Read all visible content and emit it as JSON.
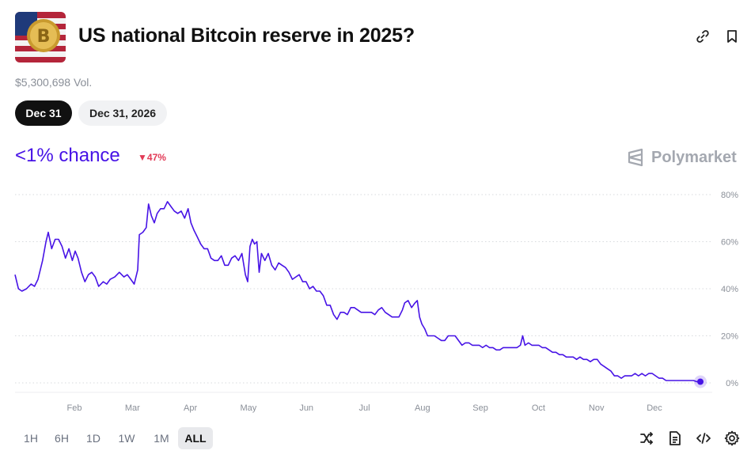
{
  "market": {
    "title": "US national Bitcoin reserve in 2025?",
    "volume": "$5,300,698 Vol.",
    "thumbnail_icon": "bitcoin-flag-image"
  },
  "date_options": [
    {
      "label": "Dec 31",
      "active": true
    },
    {
      "label": "Dec 31, 2026",
      "active": false
    }
  ],
  "outcome": {
    "chance": "<1% chance",
    "change": "47%",
    "change_direction": "down",
    "accent_color": "#4713e6",
    "negative_color": "#e23a56"
  },
  "brand": {
    "name": "Polymarket"
  },
  "header_actions": [
    {
      "icon": "link-icon"
    },
    {
      "icon": "bookmark-icon"
    }
  ],
  "range_buttons": [
    {
      "label": "1H",
      "active": false
    },
    {
      "label": "6H",
      "active": false
    },
    {
      "label": "1D",
      "active": false
    },
    {
      "label": "1W",
      "active": false
    },
    {
      "label": "1M",
      "active": false
    },
    {
      "label": "ALL",
      "active": true
    }
  ],
  "tool_icons": [
    "shuffle-icon",
    "document-icon",
    "code-icon",
    "gear-icon"
  ],
  "chart_data": {
    "type": "line",
    "series": [
      {
        "color": "#4713e6",
        "points": [
          [
            0.0,
            46
          ],
          [
            0.6,
            40
          ],
          [
            1.2,
            39
          ],
          [
            2.0,
            40
          ],
          [
            2.8,
            42
          ],
          [
            3.4,
            41
          ],
          [
            4.0,
            44
          ],
          [
            4.8,
            52
          ],
          [
            5.4,
            60
          ],
          [
            5.8,
            64
          ],
          [
            6.4,
            57
          ],
          [
            7.0,
            61
          ],
          [
            7.6,
            61
          ],
          [
            8.2,
            58
          ],
          [
            8.8,
            53
          ],
          [
            9.4,
            57
          ],
          [
            10.0,
            52
          ],
          [
            10.5,
            56
          ],
          [
            11.0,
            53
          ],
          [
            11.6,
            47
          ],
          [
            12.2,
            43
          ],
          [
            12.8,
            46
          ],
          [
            13.4,
            47
          ],
          [
            14.0,
            45
          ],
          [
            14.6,
            41
          ],
          [
            15.4,
            43
          ],
          [
            16.0,
            42
          ],
          [
            16.6,
            44
          ],
          [
            17.4,
            45
          ],
          [
            18.2,
            47
          ],
          [
            19.0,
            45
          ],
          [
            19.6,
            46
          ],
          [
            20.2,
            44
          ],
          [
            20.8,
            42
          ],
          [
            21.4,
            48
          ],
          [
            21.7,
            63
          ],
          [
            22.3,
            64
          ],
          [
            22.9,
            66
          ],
          [
            23.3,
            76
          ],
          [
            23.8,
            71
          ],
          [
            24.3,
            68
          ],
          [
            24.8,
            72
          ],
          [
            25.4,
            74
          ],
          [
            26.0,
            74
          ],
          [
            26.6,
            77
          ],
          [
            27.2,
            75
          ],
          [
            27.8,
            73
          ],
          [
            28.4,
            72
          ],
          [
            29.0,
            73
          ],
          [
            29.6,
            70
          ],
          [
            30.2,
            74
          ],
          [
            30.7,
            68
          ],
          [
            31.2,
            65
          ],
          [
            31.8,
            62
          ],
          [
            32.4,
            59
          ],
          [
            33.0,
            57
          ],
          [
            33.6,
            57
          ],
          [
            34.2,
            53
          ],
          [
            34.8,
            52
          ],
          [
            35.4,
            52
          ],
          [
            36.0,
            54
          ],
          [
            36.6,
            50
          ],
          [
            37.2,
            50
          ],
          [
            37.8,
            53
          ],
          [
            38.4,
            54
          ],
          [
            39.0,
            52
          ],
          [
            39.6,
            55
          ],
          [
            40.2,
            46
          ],
          [
            40.6,
            43
          ],
          [
            41.0,
            58
          ],
          [
            41.4,
            61
          ],
          [
            41.8,
            59
          ],
          [
            42.2,
            60
          ],
          [
            42.6,
            47
          ],
          [
            43.0,
            55
          ],
          [
            43.6,
            52
          ],
          [
            44.2,
            55
          ],
          [
            44.8,
            50
          ],
          [
            45.4,
            48
          ],
          [
            46.0,
            51
          ],
          [
            46.6,
            50
          ],
          [
            47.2,
            49
          ],
          [
            47.8,
            47
          ],
          [
            48.4,
            44
          ],
          [
            49.0,
            45
          ],
          [
            49.6,
            46
          ],
          [
            50.2,
            43
          ],
          [
            50.8,
            43
          ],
          [
            51.4,
            40
          ],
          [
            52.0,
            41
          ],
          [
            52.6,
            39
          ],
          [
            53.2,
            39
          ],
          [
            53.8,
            37
          ],
          [
            54.4,
            33
          ],
          [
            55.0,
            33
          ],
          [
            55.6,
            29
          ],
          [
            56.2,
            27
          ],
          [
            56.8,
            30
          ],
          [
            57.4,
            30
          ],
          [
            58.0,
            29
          ],
          [
            58.6,
            32
          ],
          [
            59.2,
            32
          ],
          [
            59.8,
            31
          ],
          [
            60.4,
            30
          ],
          [
            61.0,
            30
          ],
          [
            61.6,
            30
          ],
          [
            62.2,
            30
          ],
          [
            62.8,
            29
          ],
          [
            63.4,
            31
          ],
          [
            64.0,
            32
          ],
          [
            64.6,
            30
          ],
          [
            65.2,
            29
          ],
          [
            65.8,
            28
          ],
          [
            66.4,
            28
          ],
          [
            67.0,
            28
          ],
          [
            67.6,
            31
          ],
          [
            68.0,
            34
          ],
          [
            68.6,
            35
          ],
          [
            69.2,
            32
          ],
          [
            69.8,
            34
          ],
          [
            70.2,
            35
          ],
          [
            70.6,
            28
          ],
          [
            71.0,
            25
          ],
          [
            71.5,
            23
          ],
          [
            72.0,
            20
          ],
          [
            72.6,
            20
          ],
          [
            73.2,
            20
          ],
          [
            73.8,
            19
          ],
          [
            74.4,
            18
          ],
          [
            75.0,
            18
          ],
          [
            75.6,
            20
          ],
          [
            76.2,
            20
          ],
          [
            76.8,
            20
          ],
          [
            77.4,
            18
          ],
          [
            78.0,
            16
          ],
          [
            78.6,
            17
          ],
          [
            79.2,
            17
          ],
          [
            79.8,
            16
          ],
          [
            80.4,
            16
          ],
          [
            81.0,
            16
          ],
          [
            81.6,
            15
          ],
          [
            82.2,
            16
          ],
          [
            82.8,
            15
          ],
          [
            83.4,
            15
          ],
          [
            84.0,
            14
          ],
          [
            84.6,
            14
          ],
          [
            85.2,
            15
          ],
          [
            85.8,
            15
          ],
          [
            86.4,
            15
          ],
          [
            87.0,
            15
          ],
          [
            87.6,
            15
          ],
          [
            88.2,
            16
          ],
          [
            88.6,
            20
          ],
          [
            89.0,
            16
          ],
          [
            89.6,
            17
          ],
          [
            90.2,
            16
          ],
          [
            90.8,
            16
          ],
          [
            91.4,
            16
          ],
          [
            92.0,
            15
          ],
          [
            92.6,
            15
          ],
          [
            93.2,
            14
          ],
          [
            93.8,
            13
          ],
          [
            94.4,
            13
          ],
          [
            95.0,
            12
          ],
          [
            95.6,
            12
          ],
          [
            96.2,
            11
          ],
          [
            96.8,
            11
          ],
          [
            97.4,
            11
          ],
          [
            98.0,
            10
          ],
          [
            98.6,
            11
          ],
          [
            99.2,
            10
          ],
          [
            99.8,
            10
          ],
          [
            100.4,
            9
          ],
          [
            101.0,
            10
          ],
          [
            101.6,
            10
          ],
          [
            102.2,
            8
          ],
          [
            102.8,
            7
          ],
          [
            103.4,
            6
          ],
          [
            104.0,
            5
          ],
          [
            104.6,
            3
          ],
          [
            105.2,
            3
          ],
          [
            105.8,
            2
          ],
          [
            106.4,
            3
          ],
          [
            107.0,
            3
          ],
          [
            107.6,
            3
          ],
          [
            108.2,
            4
          ],
          [
            108.8,
            3
          ],
          [
            109.4,
            4
          ],
          [
            110.0,
            3
          ],
          [
            110.6,
            4
          ],
          [
            111.2,
            4
          ],
          [
            111.8,
            3
          ],
          [
            112.4,
            2
          ],
          [
            113.0,
            2
          ],
          [
            113.6,
            1
          ],
          [
            114.2,
            1
          ],
          [
            114.8,
            1
          ],
          [
            115.4,
            1
          ],
          [
            116.0,
            1
          ],
          [
            116.6,
            1
          ],
          [
            117.2,
            1
          ],
          [
            117.8,
            1
          ],
          [
            118.4,
            1
          ],
          [
            119.0,
            0.5
          ],
          [
            119.6,
            0.5
          ]
        ]
      }
    ],
    "x_ticks": [
      "Feb",
      "Mar",
      "Apr",
      "May",
      "Jun",
      "Jul",
      "Aug",
      "Sep",
      "Oct",
      "Nov",
      "Dec"
    ],
    "y_ticks": [
      "0%",
      "20%",
      "40%",
      "60%",
      "80%"
    ],
    "ylim": [
      0,
      80
    ],
    "grid": "horizontal dotted",
    "last_point_marker": true
  }
}
